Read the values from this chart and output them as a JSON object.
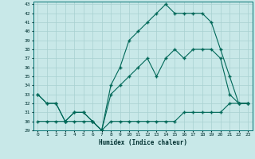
{
  "xlabel": "Humidex (Indice chaleur)",
  "background_color": "#c8e8e8",
  "grid_color": "#a8d0d0",
  "line_color": "#006858",
  "xlim": [
    -0.5,
    23.5
  ],
  "ylim": [
    29,
    43.3
  ],
  "xticks": [
    0,
    1,
    2,
    3,
    4,
    5,
    6,
    7,
    8,
    9,
    10,
    11,
    12,
    13,
    14,
    15,
    16,
    17,
    18,
    19,
    20,
    21,
    22,
    23
  ],
  "yticks": [
    29,
    30,
    31,
    32,
    33,
    34,
    35,
    36,
    37,
    38,
    39,
    40,
    41,
    42,
    43
  ],
  "line_flat_x": [
    0,
    1,
    2,
    3,
    4,
    5,
    6,
    7,
    8,
    9,
    10,
    11,
    12,
    13,
    14,
    15,
    16,
    17,
    18,
    19,
    20,
    21,
    22,
    23
  ],
  "line_flat_y": [
    30,
    30,
    30,
    30,
    30,
    30,
    30,
    29,
    30,
    30,
    30,
    30,
    30,
    30,
    30,
    30,
    31,
    31,
    31,
    31,
    31,
    32,
    32,
    32
  ],
  "line_jagged_x": [
    0,
    1,
    2,
    3,
    4,
    5,
    6,
    7,
    8,
    9,
    10,
    11,
    12,
    13,
    14,
    15,
    16,
    17,
    18,
    19,
    20,
    21,
    22,
    23
  ],
  "line_jagged_y": [
    33,
    32,
    32,
    30,
    31,
    31,
    30,
    29,
    33,
    34,
    35,
    36,
    37,
    35,
    37,
    38,
    37,
    38,
    38,
    38,
    37,
    33,
    32,
    32
  ],
  "line_upper_x": [
    0,
    1,
    2,
    3,
    4,
    5,
    6,
    7,
    8,
    9,
    10,
    11,
    12,
    13,
    14,
    15,
    16,
    17,
    18,
    19,
    20,
    21,
    22,
    23
  ],
  "line_upper_y": [
    33,
    32,
    32,
    30,
    31,
    31,
    30,
    29,
    34,
    36,
    39,
    40,
    41,
    42,
    43,
    42,
    42,
    42,
    42,
    41,
    38,
    35,
    32,
    32
  ]
}
